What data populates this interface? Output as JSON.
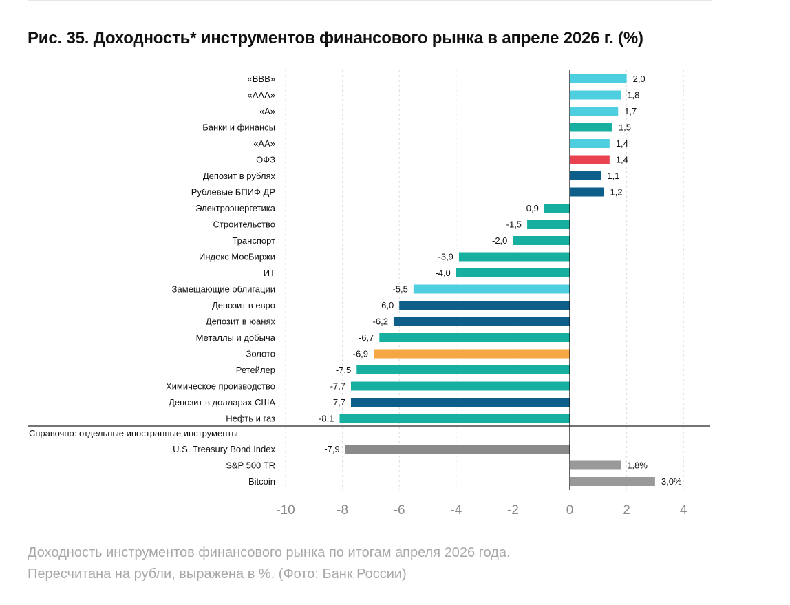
{
  "title": "Рис. 35. Доходность* инструментов финансового рынка в апреле 2026 г. (%)",
  "caption": {
    "line1": "Доходность инструментов финансового рынка по итогам апреля 2026 года.",
    "line2": "Пересчитана на рубли, выражена в %. (Фото: Банк России)"
  },
  "colors": {
    "bonds": "#4ecfe0",
    "sectors": "#17b0a0",
    "deposits": "#0d5f8a",
    "ofz": "#e8414f",
    "gold": "#f4a742",
    "foreign": "#8a8a8a"
  },
  "chart_data": {
    "type": "bar",
    "orientation": "horizontal",
    "xlim": [
      -10,
      4
    ],
    "xticks": [
      -10,
      -8,
      -6,
      -4,
      -2,
      0,
      2,
      4
    ],
    "grid": true,
    "main": [
      {
        "label": "«BBB»",
        "value": 2.0,
        "display": "2,0",
        "color": "#4ecfe0"
      },
      {
        "label": "«AAA»",
        "value": 1.8,
        "display": "1,8",
        "color": "#4ecfe0"
      },
      {
        "label": "«A»",
        "value": 1.7,
        "display": "1,7",
        "color": "#4ecfe0"
      },
      {
        "label": "Банки и финансы",
        "value": 1.5,
        "display": "1,5",
        "color": "#17b0a0"
      },
      {
        "label": "«AA»",
        "value": 1.4,
        "display": "1,4",
        "color": "#4ecfe0"
      },
      {
        "label": "ОФЗ",
        "value": 1.4,
        "display": "1,4",
        "color": "#e8414f"
      },
      {
        "label": "Депозит в рублях",
        "value": 1.1,
        "display": "1,1",
        "color": "#0d5f8a"
      },
      {
        "label": "Рублевые БПИФ ДР",
        "value": 1.2,
        "display": "1,2",
        "color": "#0d5f8a"
      },
      {
        "label": "Электроэнергетика",
        "value": -0.9,
        "display": "-0,9",
        "color": "#17b0a0"
      },
      {
        "label": "Строительство",
        "value": -1.5,
        "display": "-1,5",
        "color": "#17b0a0"
      },
      {
        "label": "Транспорт",
        "value": -2.0,
        "display": "-2,0",
        "color": "#17b0a0"
      },
      {
        "label": "Индекс МосБиржи",
        "value": -3.9,
        "display": "-3,9",
        "color": "#17b0a0"
      },
      {
        "label": "ИТ",
        "value": -4.0,
        "display": "-4,0",
        "color": "#17b0a0"
      },
      {
        "label": "Замещающие облигации",
        "value": -5.5,
        "display": "-5,5",
        "color": "#4ecfe0"
      },
      {
        "label": "Депозит в евро",
        "value": -6.0,
        "display": "-6,0",
        "color": "#0d5f8a"
      },
      {
        "label": "Депозит в юанях",
        "value": -6.2,
        "display": "-6,2",
        "color": "#0d5f8a"
      },
      {
        "label": "Металлы и добыча",
        "value": -6.7,
        "display": "-6,7",
        "color": "#17b0a0"
      },
      {
        "label": "Золото",
        "value": -6.9,
        "display": "-6,9",
        "color": "#f4a742"
      },
      {
        "label": "Ретейлер",
        "value": -7.5,
        "display": "-7,5",
        "color": "#17b0a0"
      },
      {
        "label": "Химическое производство",
        "value": -7.7,
        "display": "-7,7",
        "color": "#17b0a0"
      },
      {
        "label": "Депозит в долларах США",
        "value": -7.7,
        "display": "-7,7",
        "color": "#0d5f8a"
      },
      {
        "label": "Нефть и газ",
        "value": -8.1,
        "display": "-8,1",
        "color": "#17b0a0"
      }
    ],
    "reference_heading": "Справочно: отдельные иностранные инструменты",
    "reference": [
      {
        "label": "U.S. Treasury Bond Index",
        "value": -7.9,
        "display": "-7,9",
        "color": "#8a8a8a"
      },
      {
        "label": "S&P 500 TR",
        "value": 1.8,
        "display": "1,8%",
        "color": "#999999"
      },
      {
        "label": "Bitcoin",
        "value": 3.0,
        "display": "3,0%",
        "color": "#999999"
      }
    ]
  }
}
